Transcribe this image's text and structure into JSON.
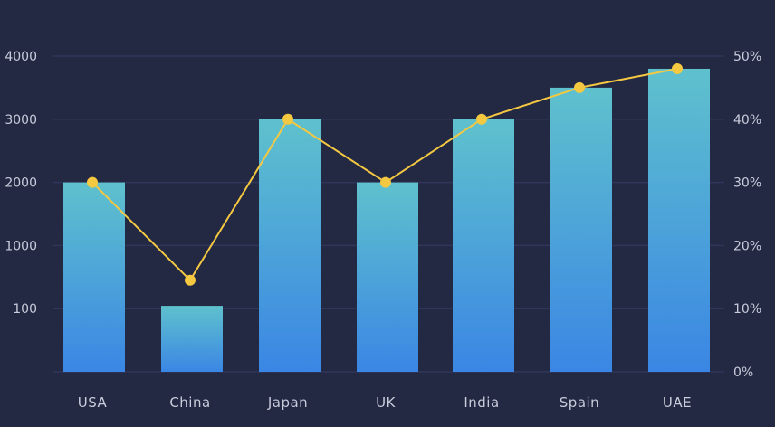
{
  "chart_data": {
    "type": "bar",
    "title": "",
    "xlabel": "",
    "ylabel": "",
    "y2label": "",
    "categories": [
      "USA",
      "China",
      "Japan",
      "UK",
      "India",
      "Spain",
      "UAE"
    ],
    "left_axis": {
      "tick_labels": [
        "",
        "100",
        "1000",
        "2000",
        "3000",
        "4000"
      ],
      "ylim": [
        0,
        5
      ]
    },
    "right_axis": {
      "tick_labels": [
        "0%",
        "10%",
        "20%",
        "30%",
        "40%",
        "50%"
      ],
      "ylim": [
        0,
        50
      ]
    },
    "series": [
      {
        "type": "bar",
        "axis": "left",
        "values": [
          2000,
          140,
          3000,
          2000,
          3000,
          3500,
          3800
        ]
      },
      {
        "type": "line",
        "axis": "right",
        "values": [
          30,
          14.5,
          40,
          30,
          40,
          45,
          48
        ]
      }
    ],
    "grid": true,
    "legend": "none",
    "colors": {
      "background": "#232843",
      "grid": "#30365a",
      "bar_top": "#5fc1cd",
      "bar_bottom": "#3a86e4",
      "line": "#f5c842",
      "text": "#c9ccdb"
    }
  }
}
